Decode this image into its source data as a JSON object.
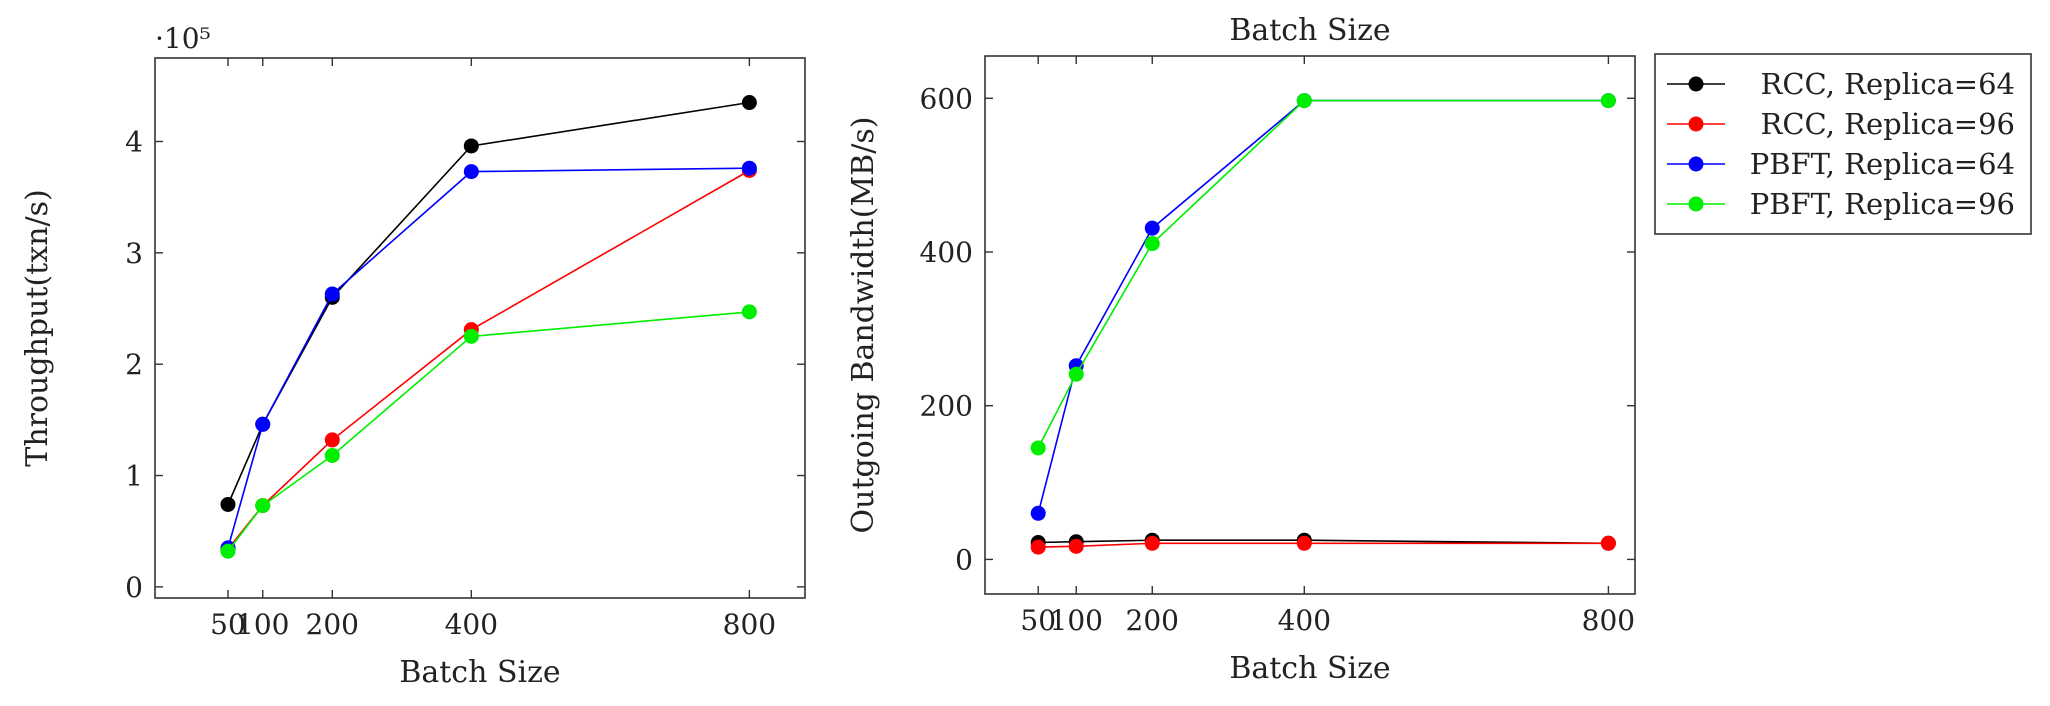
{
  "chart_data": [
    {
      "type": "line",
      "title": "",
      "xlabel": "Batch Size",
      "ylabel": "Throughput(txn/s)",
      "y_multiplier_label": "·10⁵",
      "x": [
        50,
        100,
        200,
        400,
        800
      ],
      "xticks": [
        "50",
        "100",
        "200",
        "400",
        "800"
      ],
      "yticks": [
        "0",
        "1",
        "2",
        "3",
        "4"
      ],
      "xlim": [
        -55,
        880
      ],
      "ylim": [
        -0.1,
        4.75
      ],
      "grid": false,
      "series": [
        {
          "name": "RCC, Replica=64",
          "color": "#000000",
          "values": [
            0.74,
            1.46,
            2.6,
            3.96,
            4.35
          ]
        },
        {
          "name": "RCC, Replica=96",
          "color": "#ff0000",
          "values": [
            0.34,
            0.73,
            1.32,
            2.31,
            3.74
          ]
        },
        {
          "name": "PBFT, Replica=64",
          "color": "#0000ff",
          "values": [
            0.35,
            1.46,
            2.63,
            3.73,
            3.76
          ]
        },
        {
          "name": "PBFT, Replica=96",
          "color": "#00ee00",
          "values": [
            0.32,
            0.73,
            1.18,
            2.25,
            2.47
          ]
        }
      ]
    },
    {
      "type": "line",
      "title": "Batch Size",
      "xlabel": "Batch Size",
      "ylabel": "Outgoing Bandwidth(MB/s)",
      "x": [
        50,
        100,
        200,
        400,
        800
      ],
      "xticks": [
        "50",
        "100",
        "200",
        "400",
        "800"
      ],
      "yticks": [
        "0",
        "200",
        "400",
        "600"
      ],
      "xlim": [
        -20,
        835
      ],
      "ylim": [
        -45,
        655
      ],
      "grid": false,
      "legend_position": "outside-top-right",
      "series": [
        {
          "name": "RCC, Replica=64",
          "color": "#000000",
          "values": [
            22,
            23,
            25,
            25,
            21
          ]
        },
        {
          "name": "RCC, Replica=96",
          "color": "#ff0000",
          "values": [
            16,
            17,
            21,
            21,
            21
          ]
        },
        {
          "name": "PBFT, Replica=64",
          "color": "#0000ff",
          "values": [
            60,
            252,
            431,
            597,
            597
          ]
        },
        {
          "name": "PBFT, Replica=96",
          "color": "#00ee00",
          "values": [
            145,
            241,
            411,
            597,
            597
          ]
        }
      ]
    }
  ]
}
